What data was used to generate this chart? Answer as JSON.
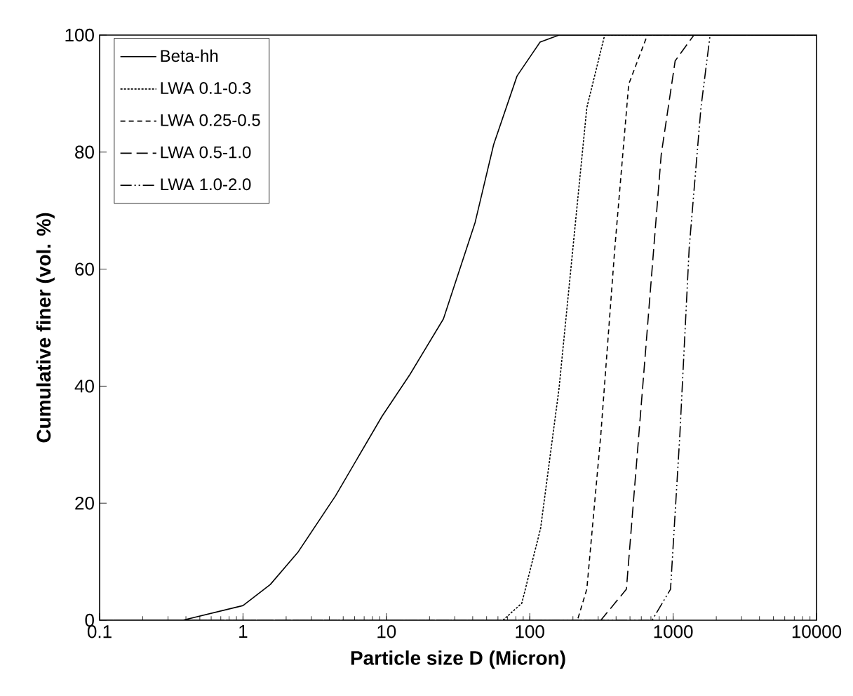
{
  "chart_data": {
    "type": "line",
    "xlabel": "Particle size D (Micron)",
    "ylabel": "Cumulative finer (vol. %)",
    "log": "x",
    "xlim": [
      0.1,
      10000
    ],
    "xticks": [
      0.1,
      1,
      10,
      100,
      1000,
      10000
    ],
    "ylim": [
      0,
      100
    ],
    "yticks": [
      0,
      20,
      40,
      60,
      80,
      100
    ],
    "grid": false,
    "legend": "top left",
    "marker": "none",
    "series": [
      {
        "name": "Beta-hh",
        "color": "#000000",
        "line_style": "solid",
        "x": [
          0.1,
          0.38,
          1,
          1.55,
          2.43,
          4.43,
          9.3,
          14.6,
          25,
          41.6,
          56,
          81.5,
          118,
          160,
          10000
        ],
        "values": [
          0,
          0,
          2.5,
          6.1,
          11.7,
          21.3,
          34.8,
          42,
          51.5,
          68,
          81.3,
          93,
          98.8,
          100,
          100
        ]
      },
      {
        "name": "LWA 0.1-0.3",
        "color": "#000000",
        "line_style": "dotted",
        "x": [
          0.1,
          65,
          88,
          119,
          160,
          200,
          250,
          333,
          10000
        ],
        "values": [
          0,
          0,
          2.9,
          15.7,
          39.6,
          63.6,
          87.6,
          100,
          100
        ]
      },
      {
        "name": "LWA 0.25-0.5",
        "color": "#000000",
        "line_style": "dashed",
        "x": [
          0.1,
          215,
          250,
          313,
          392,
          490,
          661,
          10000
        ],
        "values": [
          0,
          0,
          5.3,
          31.7,
          63.6,
          91.6,
          100,
          100
        ]
      },
      {
        "name": "LWA 0.5-1.0",
        "color": "#000000",
        "line_style": "longdashed",
        "x": [
          0.1,
          313,
          472,
          612,
          826,
          1033,
          1396,
          10000
        ],
        "values": [
          0,
          0,
          5.3,
          39.6,
          79.6,
          95.6,
          100,
          100
        ]
      },
      {
        "name": "LWA 1.0-2.0",
        "color": "#000000",
        "line_style": "dashdotdot",
        "x": [
          0.1,
          713,
          959,
          1114,
          1294,
          1563,
          1811,
          10000
        ],
        "values": [
          0,
          0,
          5.3,
          31.7,
          63.6,
          87.6,
          100,
          100
        ]
      }
    ]
  }
}
